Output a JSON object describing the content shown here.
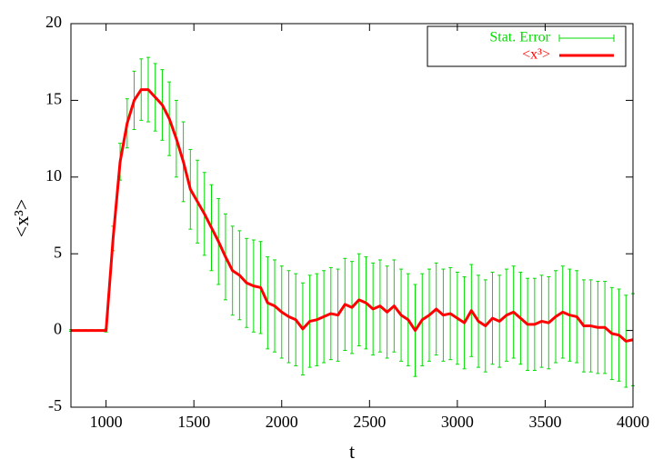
{
  "chart_data": {
    "type": "line",
    "x_label": "t",
    "y_label": "<x³>",
    "xlim": [
      800,
      4000
    ],
    "xticks": [
      1000,
      1500,
      2000,
      2500,
      3000,
      3500,
      4000
    ],
    "ylim": [
      -5,
      20
    ],
    "yticks": [
      -5,
      0,
      5,
      10,
      15,
      20
    ],
    "legend": "top-right",
    "x": [
      800,
      840,
      880,
      920,
      960,
      1000,
      1040,
      1080,
      1120,
      1160,
      1200,
      1240,
      1280,
      1320,
      1360,
      1400,
      1440,
      1480,
      1520,
      1560,
      1600,
      1640,
      1680,
      1720,
      1760,
      1800,
      1840,
      1880,
      1920,
      1960,
      2000,
      2040,
      2080,
      2120,
      2160,
      2200,
      2240,
      2280,
      2320,
      2360,
      2400,
      2440,
      2480,
      2520,
      2560,
      2600,
      2640,
      2680,
      2720,
      2760,
      2800,
      2840,
      2880,
      2920,
      2960,
      3000,
      3040,
      3080,
      3120,
      3160,
      3200,
      3240,
      3280,
      3320,
      3360,
      3400,
      3440,
      3480,
      3520,
      3560,
      3600,
      3640,
      3680,
      3720,
      3760,
      3800,
      3840,
      3880,
      3920,
      3960,
      4000
    ],
    "series": [
      {
        "name": "<x³>",
        "color": "#ff0000",
        "values": [
          0,
          0,
          0,
          0,
          0,
          0,
          6,
          11,
          13.5,
          15,
          15.7,
          15.7,
          15.2,
          14.7,
          13.8,
          12.5,
          11,
          9.2,
          8.4,
          7.6,
          6.7,
          5.8,
          4.8,
          3.9,
          3.6,
          3.1,
          2.9,
          2.8,
          1.8,
          1.6,
          1.2,
          0.9,
          0.7,
          0.1,
          0.6,
          0.7,
          0.9,
          1.1,
          1.0,
          1.7,
          1.5,
          2.0,
          1.8,
          1.4,
          1.6,
          1.2,
          1.6,
          1.0,
          0.7,
          0.0,
          0.7,
          1.0,
          1.4,
          1.0,
          1.1,
          0.8,
          0.5,
          1.3,
          0.6,
          0.3,
          0.8,
          0.6,
          1.0,
          1.2,
          0.8,
          0.4,
          0.4,
          0.6,
          0.5,
          0.9,
          1.2,
          1.0,
          0.9,
          0.3,
          0.3,
          0.2,
          0.2,
          -0.2,
          -0.3,
          -0.7,
          -0.6
        ],
        "errors": {
          "name": "Stat. Error",
          "color": "#00dd00",
          "values": [
            0.05,
            0.05,
            0.05,
            0.05,
            0.05,
            0.1,
            0.8,
            1.2,
            1.6,
            1.9,
            2.0,
            2.1,
            2.2,
            2.3,
            2.4,
            2.5,
            2.6,
            2.6,
            2.7,
            2.7,
            2.8,
            2.8,
            2.8,
            2.9,
            2.9,
            2.9,
            3,
            3,
            3,
            3,
            3,
            3,
            3,
            3,
            3,
            3,
            3,
            3,
            3,
            3,
            3,
            3,
            3,
            3,
            3,
            3,
            3,
            3,
            3,
            3,
            3,
            3,
            3,
            3,
            3,
            3,
            3,
            3,
            3,
            3,
            3,
            3,
            3,
            3,
            3,
            3,
            3,
            3,
            3,
            3,
            3,
            3,
            3,
            3,
            3,
            3,
            3,
            3,
            3,
            3,
            3
          ]
        }
      }
    ]
  }
}
